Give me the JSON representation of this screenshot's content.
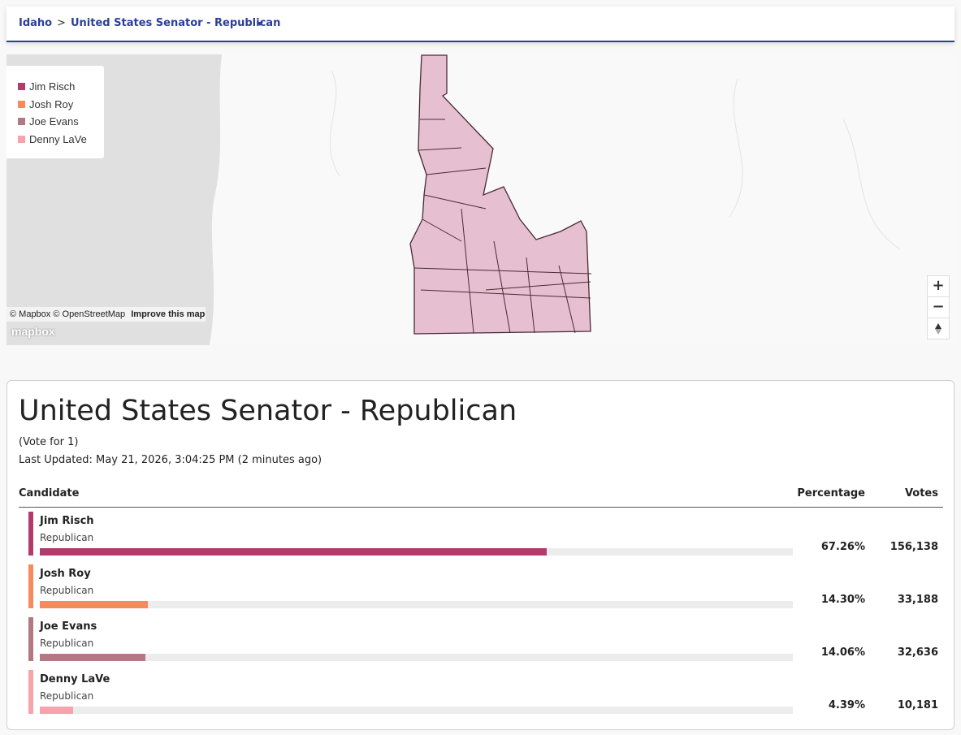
{
  "breadcrumb": {
    "state": "Idaho",
    "separator": ">",
    "contest": "United States Senator - Republican"
  },
  "map": {
    "attribution": "© Mapbox © OpenStreetMap",
    "improve_link": "Improve this map",
    "logo": "mapbox",
    "zoom_in": "+",
    "zoom_out": "−"
  },
  "results": {
    "title": "United States Senator - Republican",
    "vote_for": "(Vote for 1)",
    "last_updated": "Last Updated: May 21, 2026, 3:04:25 PM (2 minutes ago)",
    "columns": [
      "Candidate",
      "Percentage",
      "Votes"
    ],
    "candidates": [
      {
        "name": "Jim Risch",
        "party": "Republican",
        "color": "#b23b6c",
        "percentage": {
          "value": 67.26,
          "label": "67.26%"
        },
        "votes": "156,138"
      },
      {
        "name": "Josh Roy",
        "party": "Republican",
        "color": "#f68a5c",
        "percentage": {
          "value": 14.3,
          "label": "14.30%"
        },
        "votes": "33,188"
      },
      {
        "name": "Joe Evans",
        "party": "Republican",
        "color": "#b47885",
        "percentage": {
          "value": 14.06,
          "label": "14.06%"
        },
        "votes": "32,636"
      },
      {
        "name": "Denny LaVe",
        "party": "Republican",
        "color": "#f7a3ab",
        "percentage": {
          "value": 4.39,
          "label": "4.39%"
        },
        "votes": "10,181"
      }
    ]
  }
}
